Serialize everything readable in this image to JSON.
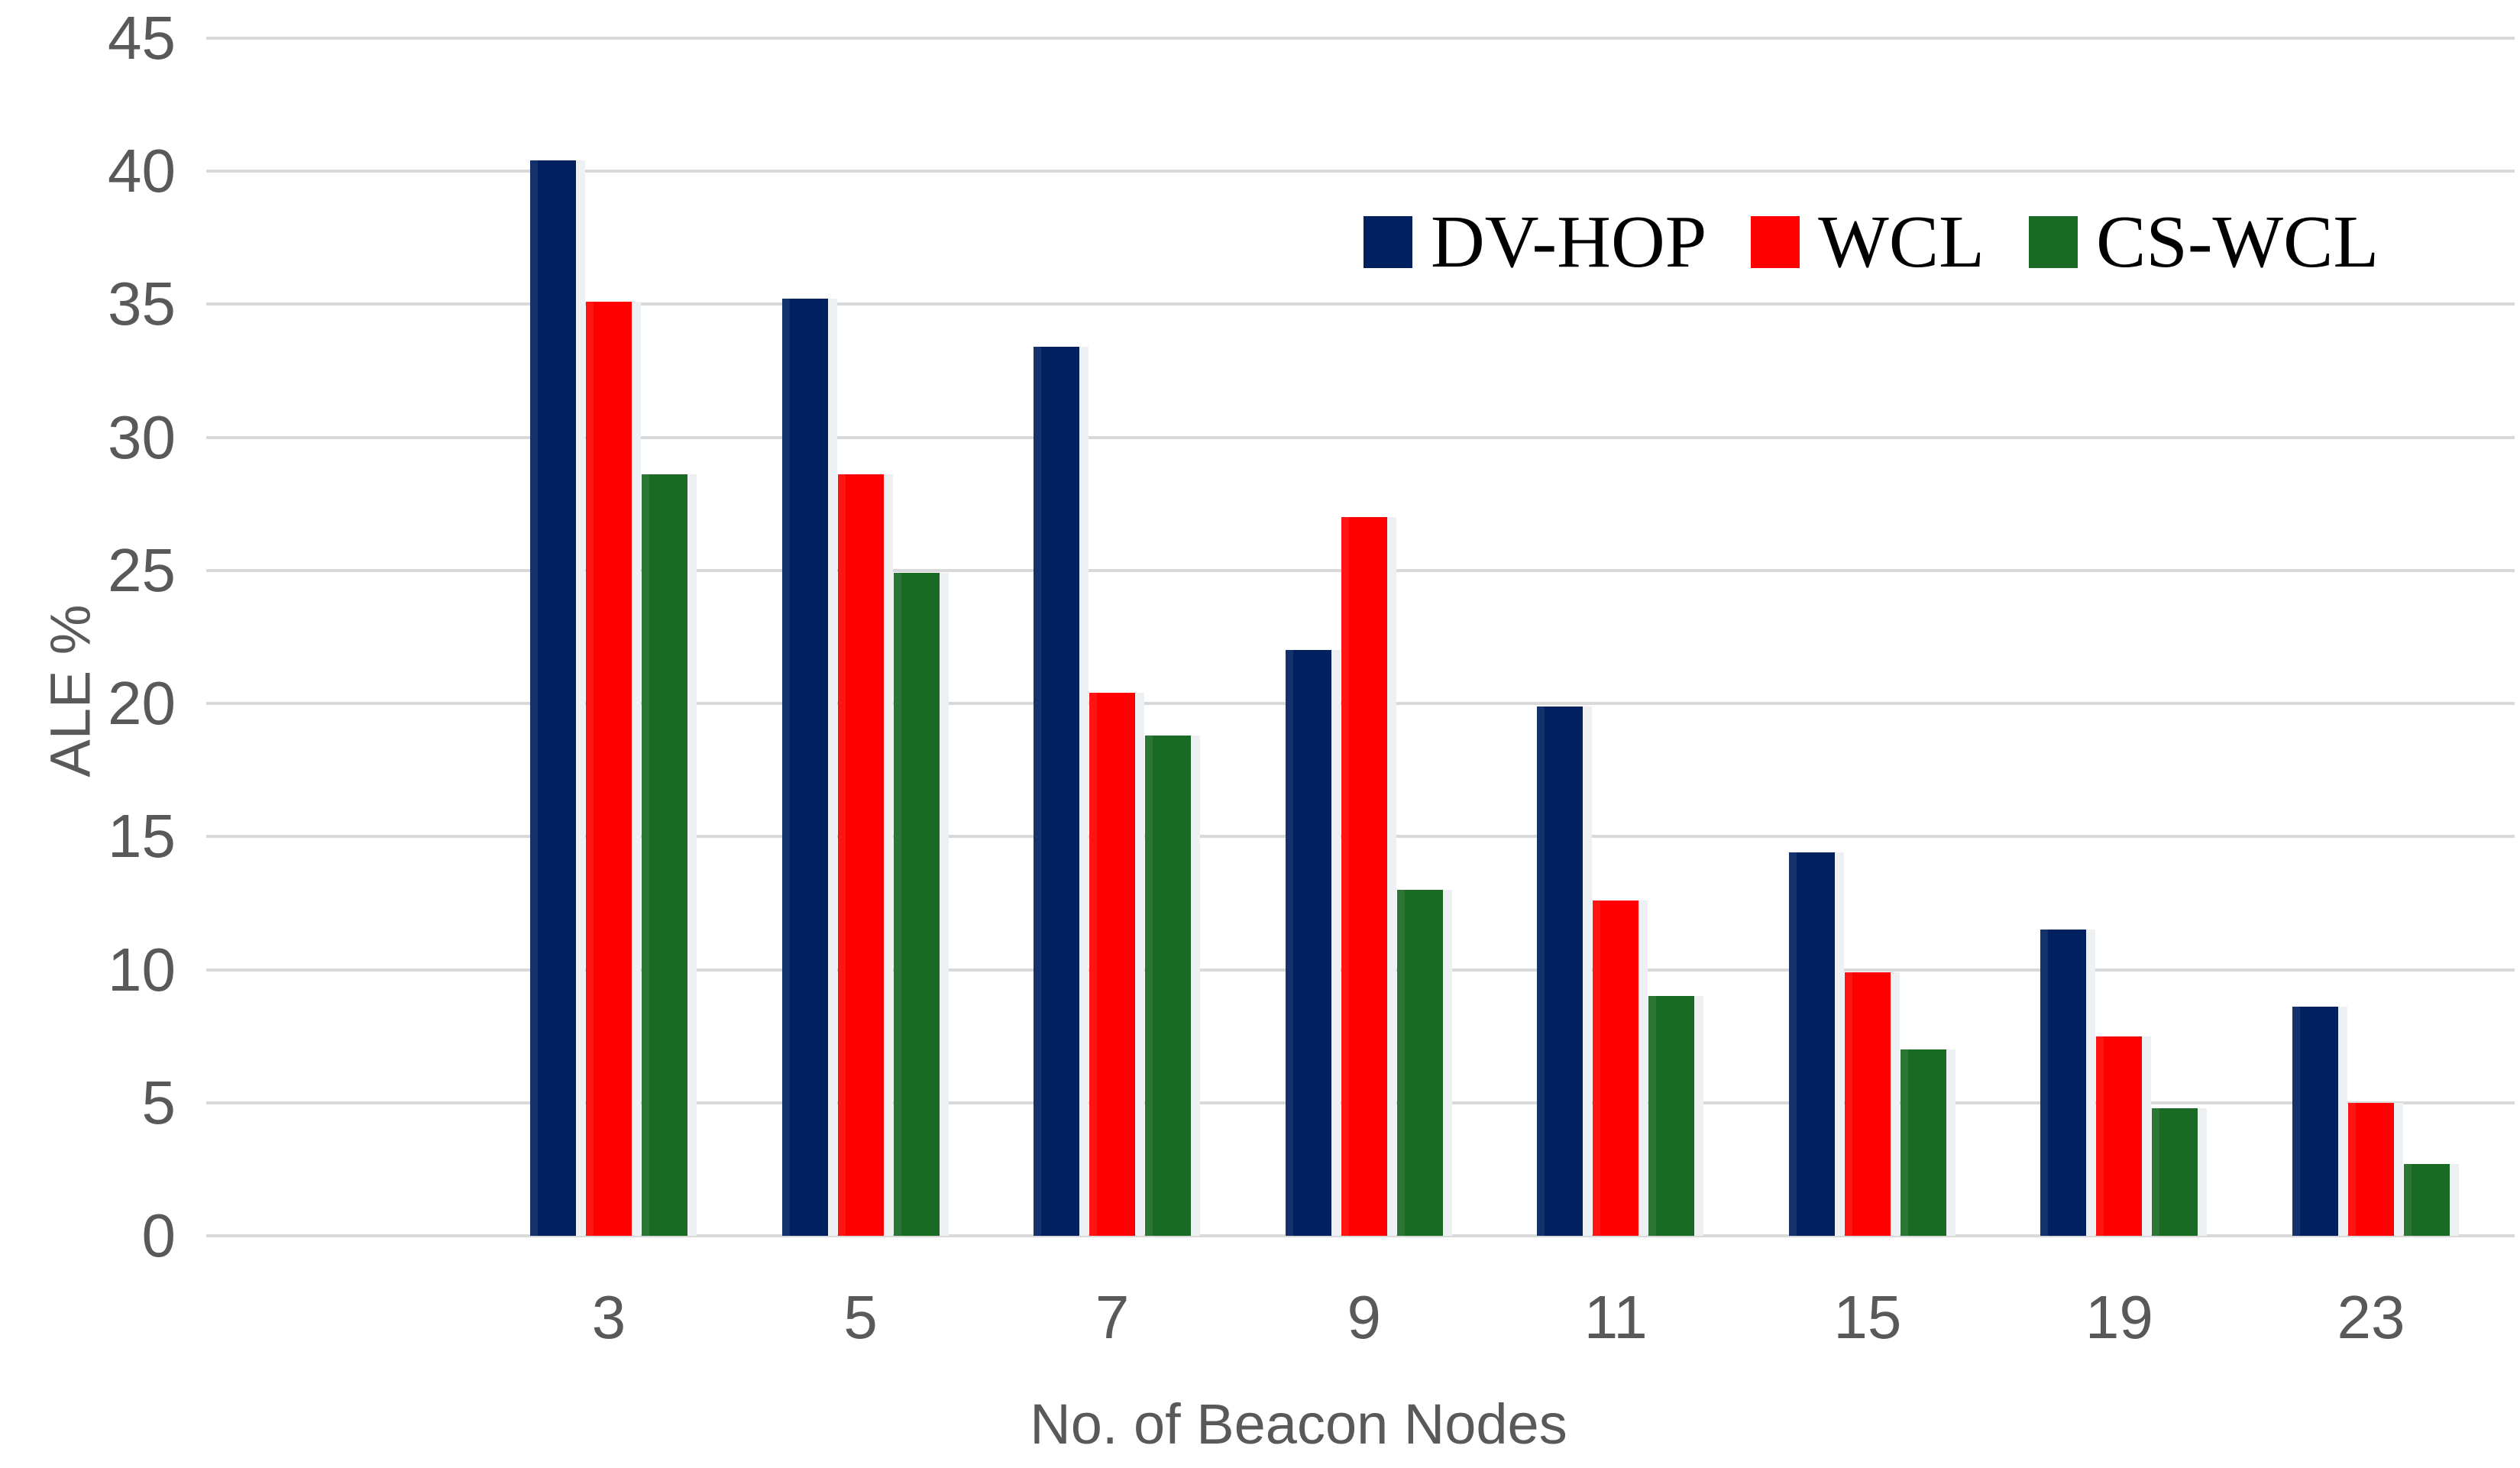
{
  "chart_data": {
    "type": "bar",
    "title": "",
    "categories": [
      "3",
      "5",
      "7",
      "9",
      "11",
      "15",
      "19",
      "23"
    ],
    "series": [
      {
        "name": "DV-HOP",
        "color": "#002060",
        "values": [
          40.4,
          35.2,
          33.4,
          22.0,
          19.9,
          14.4,
          11.5,
          8.6
        ]
      },
      {
        "name": "WCL",
        "color": "#FF0000",
        "values": [
          35.1,
          28.6,
          20.4,
          27.0,
          12.6,
          9.9,
          7.5,
          5.0
        ]
      },
      {
        "name": "CS-WCL",
        "color": "#196B24",
        "values": [
          28.6,
          24.9,
          18.8,
          13.0,
          9.0,
          7.0,
          4.8,
          2.7
        ]
      }
    ],
    "xlabel": "No. of Beacon Nodes",
    "ylabel": "ALE %",
    "ylim": [
      0,
      45
    ],
    "ytick_step": 5,
    "yticks": [
      0,
      5,
      10,
      15,
      20,
      25,
      30,
      35,
      40,
      45
    ],
    "grid": "horizontal",
    "legend_position": "top-right",
    "colors": {
      "gridline": "#D9D9D9",
      "tick_text": "#595959",
      "legend_text": "#000000",
      "background": "#FFFFFF"
    }
  }
}
